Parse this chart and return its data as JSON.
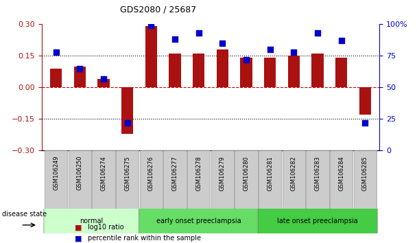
{
  "title": "GDS2080 / 25687",
  "categories": [
    "GSM106249",
    "GSM106250",
    "GSM106274",
    "GSM106275",
    "GSM106276",
    "GSM106277",
    "GSM106278",
    "GSM106279",
    "GSM106280",
    "GSM106281",
    "GSM106282",
    "GSM106283",
    "GSM106284",
    "GSM106285"
  ],
  "log10_ratio": [
    0.09,
    0.1,
    0.04,
    -0.22,
    0.29,
    0.16,
    0.16,
    0.18,
    0.14,
    0.14,
    0.15,
    0.16,
    0.14,
    -0.13
  ],
  "percentile_rank": [
    78,
    65,
    57,
    22,
    99,
    88,
    93,
    85,
    72,
    80,
    78,
    93,
    87,
    22
  ],
  "bar_color": "#AA1111",
  "dot_color": "#0000CC",
  "ylim_left": [
    -0.3,
    0.3
  ],
  "ylim_right": [
    0,
    100
  ],
  "yticks_left": [
    -0.3,
    -0.15,
    0,
    0.15,
    0.3
  ],
  "yticks_right": [
    0,
    25,
    50,
    75,
    100
  ],
  "ytick_labels_right": [
    "0",
    "25",
    "50",
    "75",
    "100%"
  ],
  "hlines": [
    -0.15,
    0,
    0.15
  ],
  "groups": [
    {
      "label": "normal",
      "start": 0,
      "end": 4,
      "color": "#ccffcc"
    },
    {
      "label": "early onset preeclampsia",
      "start": 4,
      "end": 9,
      "color": "#66dd66"
    },
    {
      "label": "late onset preeclampsia",
      "start": 9,
      "end": 14,
      "color": "#44cc44"
    }
  ],
  "label_log10": "log10 ratio",
  "label_pct": "percentile rank within the sample",
  "disease_state_label": "disease state",
  "tick_bg_color": "#cccccc",
  "tick_border_color": "#999999"
}
